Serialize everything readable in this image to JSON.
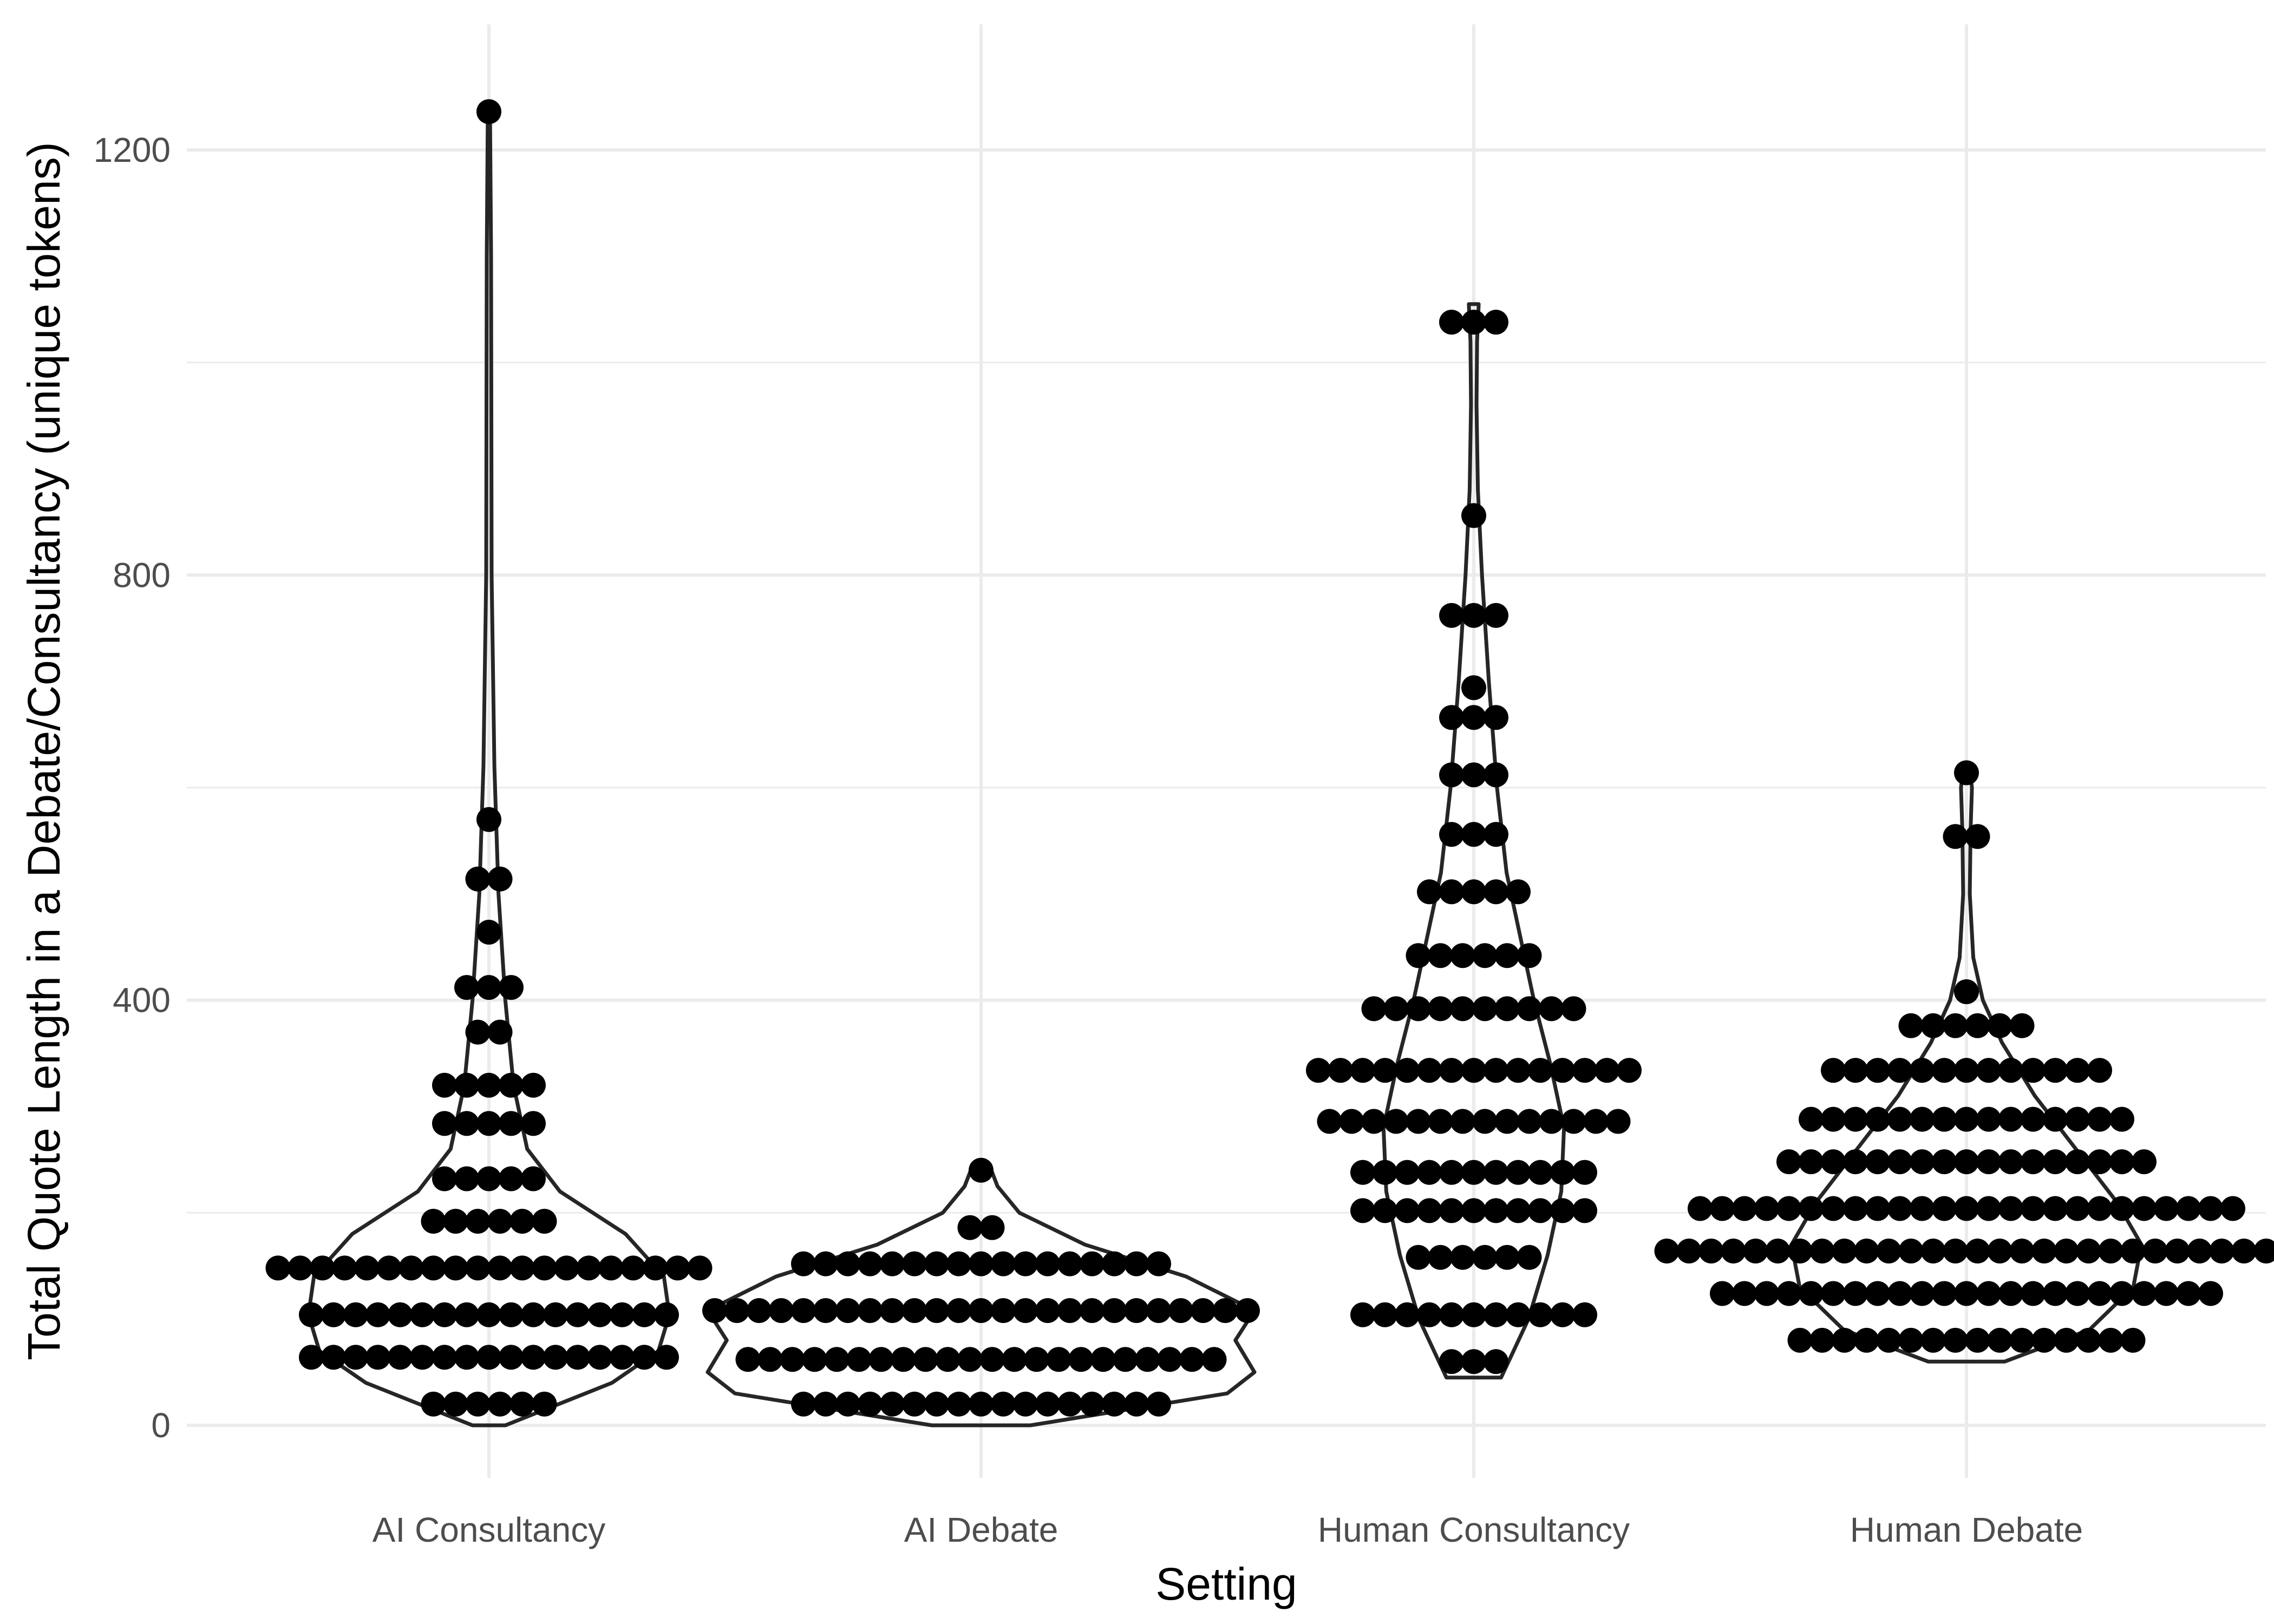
{
  "chart_data": {
    "type": "violin",
    "title": "",
    "xlabel": "Setting",
    "ylabel": "Total Quote Length in a Debate/Consultancy (unique tokens)",
    "categories": [
      "AI Consultancy",
      "AI Debate",
      "Human Consultancy",
      "Human Debate"
    ],
    "ylim": [
      -100,
      1320
    ],
    "yticks": [
      0,
      400,
      800,
      1200
    ],
    "grid": true,
    "legend": "none",
    "colors": {
      "points": "#000000",
      "violin_outline": "#262626",
      "grid": "#ebebeb",
      "tick_text": "#4d4d4d"
    },
    "series": [
      {
        "category": "AI Consultancy",
        "bins": [
          {
            "y": 20,
            "count": 6
          },
          {
            "y": 64,
            "count": 17
          },
          {
            "y": 104,
            "count": 17
          },
          {
            "y": 148,
            "count": 20
          },
          {
            "y": 192,
            "count": 6
          },
          {
            "y": 232,
            "count": 5
          },
          {
            "y": 284,
            "count": 5
          },
          {
            "y": 320,
            "count": 5
          },
          {
            "y": 370,
            "count": 2
          },
          {
            "y": 412,
            "count": 3
          },
          {
            "y": 464,
            "count": 1
          },
          {
            "y": 514,
            "count": 2
          },
          {
            "y": 570,
            "count": 1
          },
          {
            "y": 1236,
            "count": 1
          }
        ],
        "violin_profile": [
          {
            "y": 0,
            "w": 0.06
          },
          {
            "y": 40,
            "w": 0.45
          },
          {
            "y": 70,
            "w": 0.62
          },
          {
            "y": 104,
            "w": 0.66
          },
          {
            "y": 140,
            "w": 0.64
          },
          {
            "y": 180,
            "w": 0.5
          },
          {
            "y": 220,
            "w": 0.26
          },
          {
            "y": 260,
            "w": 0.14
          },
          {
            "y": 320,
            "w": 0.09
          },
          {
            "y": 400,
            "w": 0.06
          },
          {
            "y": 500,
            "w": 0.035
          },
          {
            "y": 620,
            "w": 0.02
          },
          {
            "y": 800,
            "w": 0.01
          },
          {
            "y": 1100,
            "w": 0.008
          },
          {
            "y": 1240,
            "w": 0.004
          }
        ]
      },
      {
        "category": "AI Debate",
        "bins": [
          {
            "y": 20,
            "count": 17
          },
          {
            "y": 62,
            "count": 22
          },
          {
            "y": 108,
            "count": 25
          },
          {
            "y": 152,
            "count": 17
          },
          {
            "y": 186,
            "count": 2
          },
          {
            "y": 240,
            "count": 1
          }
        ],
        "violin_profile": [
          {
            "y": 0,
            "w": 0.18
          },
          {
            "y": 30,
            "w": 0.9
          },
          {
            "y": 50,
            "w": 1.0
          },
          {
            "y": 80,
            "w": 0.93
          },
          {
            "y": 108,
            "w": 1.0
          },
          {
            "y": 140,
            "w": 0.75
          },
          {
            "y": 170,
            "w": 0.38
          },
          {
            "y": 200,
            "w": 0.14
          },
          {
            "y": 225,
            "w": 0.06
          },
          {
            "y": 245,
            "w": 0.03
          }
        ]
      },
      {
        "category": "Human Consultancy",
        "bins": [
          {
            "y": 60,
            "count": 3
          },
          {
            "y": 104,
            "count": 11
          },
          {
            "y": 158,
            "count": 6
          },
          {
            "y": 202,
            "count": 11
          },
          {
            "y": 238,
            "count": 11
          },
          {
            "y": 286,
            "count": 14
          },
          {
            "y": 334,
            "count": 15
          },
          {
            "y": 392,
            "count": 10
          },
          {
            "y": 442,
            "count": 6
          },
          {
            "y": 502,
            "count": 5
          },
          {
            "y": 556,
            "count": 3
          },
          {
            "y": 612,
            "count": 3
          },
          {
            "y": 666,
            "count": 3
          },
          {
            "y": 694,
            "count": 1
          },
          {
            "y": 762,
            "count": 3
          },
          {
            "y": 856,
            "count": 1
          },
          {
            "y": 1038,
            "count": 3
          }
        ],
        "violin_profile": [
          {
            "y": 45,
            "w": 0.1
          },
          {
            "y": 100,
            "w": 0.2
          },
          {
            "y": 160,
            "w": 0.27
          },
          {
            "y": 220,
            "w": 0.32
          },
          {
            "y": 280,
            "w": 0.33
          },
          {
            "y": 340,
            "w": 0.28
          },
          {
            "y": 400,
            "w": 0.22
          },
          {
            "y": 460,
            "w": 0.17
          },
          {
            "y": 520,
            "w": 0.12
          },
          {
            "y": 600,
            "w": 0.085
          },
          {
            "y": 700,
            "w": 0.055
          },
          {
            "y": 800,
            "w": 0.03
          },
          {
            "y": 880,
            "w": 0.015
          },
          {
            "y": 960,
            "w": 0.01
          },
          {
            "y": 1020,
            "w": 0.012
          },
          {
            "y": 1055,
            "w": 0.018
          }
        ]
      },
      {
        "category": "Human Debate",
        "bins": [
          {
            "y": 80,
            "count": 16
          },
          {
            "y": 124,
            "count": 23
          },
          {
            "y": 164,
            "count": 28
          },
          {
            "y": 204,
            "count": 25
          },
          {
            "y": 248,
            "count": 17
          },
          {
            "y": 288,
            "count": 15
          },
          {
            "y": 334,
            "count": 13
          },
          {
            "y": 376,
            "count": 6
          },
          {
            "y": 408,
            "count": 1
          },
          {
            "y": 554,
            "count": 2
          },
          {
            "y": 614,
            "count": 1
          }
        ],
        "violin_profile": [
          {
            "y": 60,
            "w": 0.14
          },
          {
            "y": 90,
            "w": 0.45
          },
          {
            "y": 130,
            "w": 0.61
          },
          {
            "y": 170,
            "w": 0.64
          },
          {
            "y": 210,
            "w": 0.55
          },
          {
            "y": 260,
            "w": 0.4
          },
          {
            "y": 310,
            "w": 0.25
          },
          {
            "y": 360,
            "w": 0.13
          },
          {
            "y": 400,
            "w": 0.06
          },
          {
            "y": 440,
            "w": 0.025
          },
          {
            "y": 500,
            "w": 0.012
          },
          {
            "y": 560,
            "w": 0.015
          },
          {
            "y": 600,
            "w": 0.02
          },
          {
            "y": 618,
            "w": 0.012
          }
        ]
      }
    ]
  }
}
